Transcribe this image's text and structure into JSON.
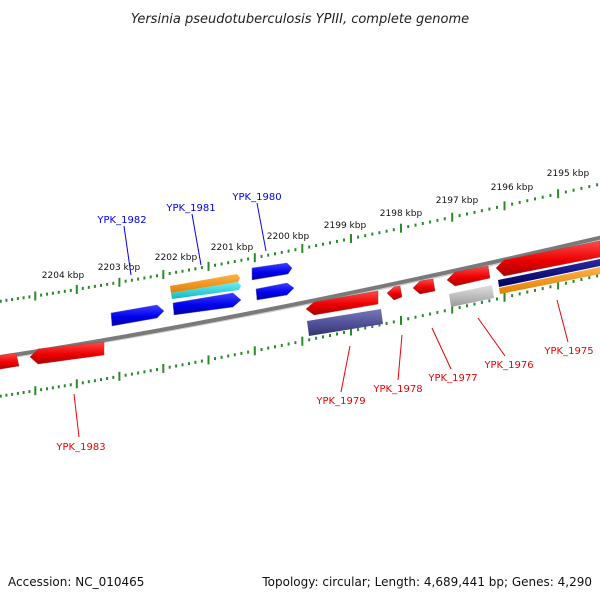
{
  "title": "Yersinia pseudotuberculosis YPIII, complete genome",
  "footer": {
    "accession": "Accession: NC_010465",
    "summary": "Topology: circular; Length: 4,689,441 bp; Genes: 4,290"
  },
  "colors": {
    "forward_gene": "#0000ee",
    "reverse_gene": "#ee0000",
    "tick": "#2a8a2a",
    "backbone": "#808080"
  },
  "scale_labels": [
    "2195 kbp",
    "2196 kbp",
    "2197 kbp",
    "2198 kbp",
    "2199 kbp",
    "2200 kbp",
    "2201 kbp",
    "2202 kbp",
    "2203 kbp",
    "2204 kbp"
  ],
  "gene_labels": {
    "forward": [
      "YPK_1982",
      "YPK_1981",
      "YPK_1980"
    ],
    "reverse": [
      "YPK_1983",
      "YPK_1979",
      "YPK_1978",
      "YPK_1977",
      "YPK_1976",
      "YPK_1975"
    ]
  }
}
